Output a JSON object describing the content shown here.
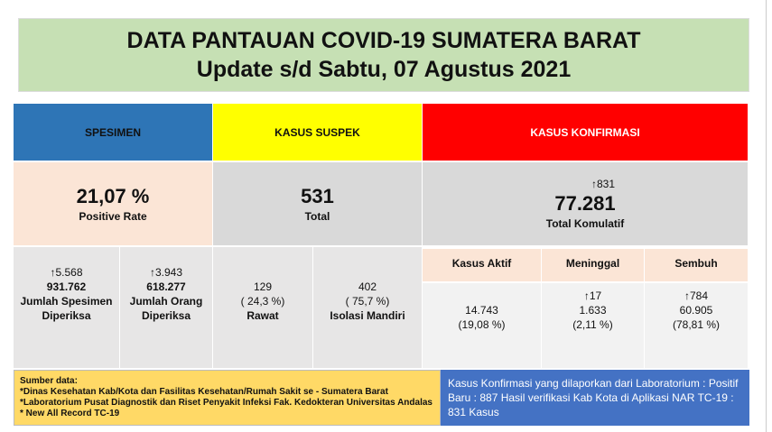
{
  "header": {
    "title": "DATA PANTAUAN COVID-19 SUMATERA BARAT",
    "subtitle": "Update s/d Sabtu, 07 Agustus 2021"
  },
  "spesimen": {
    "label": "SPESIMEN",
    "rate": "21,07 %",
    "rate_label": "Positive Rate",
    "items": [
      {
        "change": "↑5.568",
        "value": "931.762",
        "label": "Jumlah Spesimen Diperiksa"
      },
      {
        "change": "↑3.943",
        "value": "618.277",
        "label": "Jumlah Orang Diperiksa"
      }
    ]
  },
  "suspek": {
    "label": "KASUS SUSPEK",
    "total": "531",
    "total_label": "Total",
    "items": [
      {
        "value": "129",
        "percent": "( 24,3 %)",
        "label": "Rawat"
      },
      {
        "value": "402",
        "percent": "( 75,7 %)",
        "label": "Isolasi Mandiri"
      }
    ]
  },
  "konfirmasi": {
    "label": "KASUS KONFIRMASI",
    "change": "↑831",
    "total": "77.281",
    "total_label": "Total Komulatif",
    "items": [
      {
        "label": "Kasus Aktif",
        "value": "14.743",
        "percent": "(19,08 %)"
      },
      {
        "label": "Meninggal",
        "change": "↑17",
        "value": "1.633",
        "percent": "(2,11 %)"
      },
      {
        "label": "Sembuh",
        "change": "↑784",
        "value": "60.905",
        "percent": "(78,81 %)"
      }
    ]
  },
  "sources": {
    "title": "Sumber data:",
    "lines": [
      "*Dinas Kesehatan Kab/Kota  dan Fasilitas Kesehatan/Rumah Sakit se - Sumatera Barat",
      "*Laboratorium  Pusat Diagnostik dan Riset  Penyakit Infeksi Fak. Kedokteran Universitas Andalas",
      "* New All Record TC-19"
    ]
  },
  "note": "Kasus Konfirmasi yang dilaporkan dari Laboratorium : Positif Baru : 887 Hasil verifikasi Kab Kota di Aplikasi NAR TC-19 : 831 Kasus"
}
